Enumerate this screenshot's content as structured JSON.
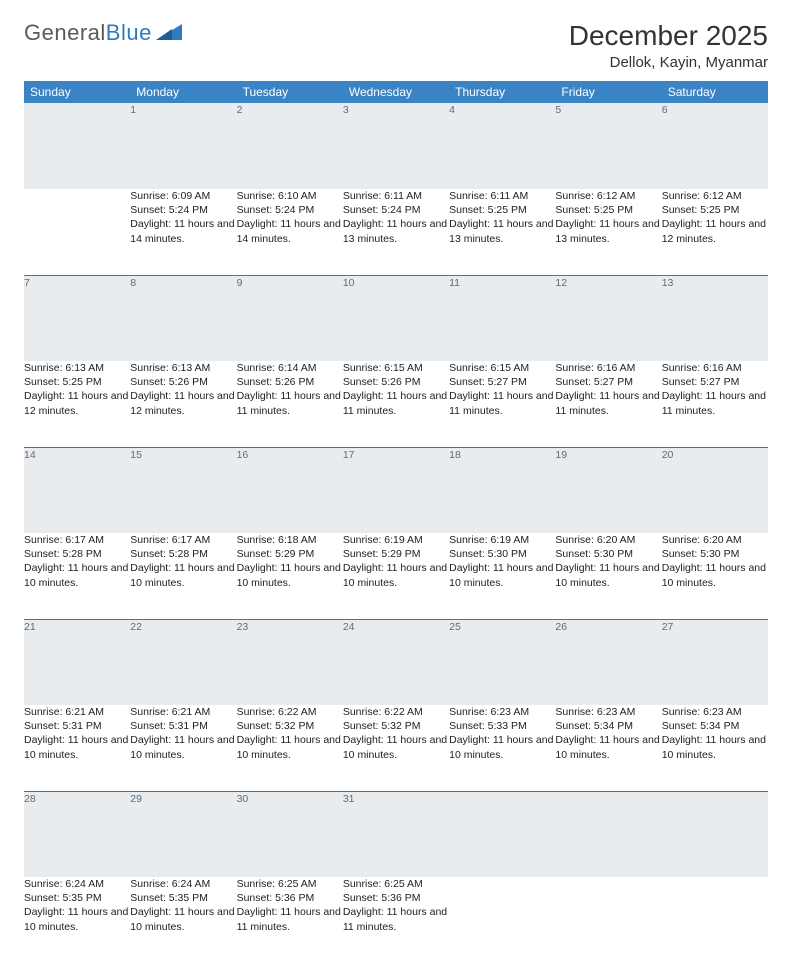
{
  "logo": {
    "text1": "General",
    "text2": "Blue"
  },
  "title": "December 2025",
  "location": "Dellok, Kayin, Myanmar",
  "colors": {
    "header_bg": "#3a83c5",
    "daynum_bg": "#e9ecef",
    "daynum_color": "#5f6b76",
    "row_divider": "#2f7bbf",
    "logo_gray": "#5a5a5a",
    "logo_blue": "#2f7bbf",
    "text": "#222222",
    "bg": "#ffffff"
  },
  "fonts": {
    "title_size": 28,
    "location_size": 15,
    "weekday_size": 12,
    "daynum_size": 12,
    "cell_size": 10.5
  },
  "weekdays": [
    "Sunday",
    "Monday",
    "Tuesday",
    "Wednesday",
    "Thursday",
    "Friday",
    "Saturday"
  ],
  "weeks": [
    {
      "nums": [
        "",
        "1",
        "2",
        "3",
        "4",
        "5",
        "6"
      ],
      "cells": [
        {
          "sr": "",
          "ss": "",
          "dl": ""
        },
        {
          "sr": "Sunrise: 6:09 AM",
          "ss": "Sunset: 5:24 PM",
          "dl": "Daylight: 11 hours and 14 minutes."
        },
        {
          "sr": "Sunrise: 6:10 AM",
          "ss": "Sunset: 5:24 PM",
          "dl": "Daylight: 11 hours and 14 minutes."
        },
        {
          "sr": "Sunrise: 6:11 AM",
          "ss": "Sunset: 5:24 PM",
          "dl": "Daylight: 11 hours and 13 minutes."
        },
        {
          "sr": "Sunrise: 6:11 AM",
          "ss": "Sunset: 5:25 PM",
          "dl": "Daylight: 11 hours and 13 minutes."
        },
        {
          "sr": "Sunrise: 6:12 AM",
          "ss": "Sunset: 5:25 PM",
          "dl": "Daylight: 11 hours and 13 minutes."
        },
        {
          "sr": "Sunrise: 6:12 AM",
          "ss": "Sunset: 5:25 PM",
          "dl": "Daylight: 11 hours and 12 minutes."
        }
      ]
    },
    {
      "nums": [
        "7",
        "8",
        "9",
        "10",
        "11",
        "12",
        "13"
      ],
      "cells": [
        {
          "sr": "Sunrise: 6:13 AM",
          "ss": "Sunset: 5:25 PM",
          "dl": "Daylight: 11 hours and 12 minutes."
        },
        {
          "sr": "Sunrise: 6:13 AM",
          "ss": "Sunset: 5:26 PM",
          "dl": "Daylight: 11 hours and 12 minutes."
        },
        {
          "sr": "Sunrise: 6:14 AM",
          "ss": "Sunset: 5:26 PM",
          "dl": "Daylight: 11 hours and 11 minutes."
        },
        {
          "sr": "Sunrise: 6:15 AM",
          "ss": "Sunset: 5:26 PM",
          "dl": "Daylight: 11 hours and 11 minutes."
        },
        {
          "sr": "Sunrise: 6:15 AM",
          "ss": "Sunset: 5:27 PM",
          "dl": "Daylight: 11 hours and 11 minutes."
        },
        {
          "sr": "Sunrise: 6:16 AM",
          "ss": "Sunset: 5:27 PM",
          "dl": "Daylight: 11 hours and 11 minutes."
        },
        {
          "sr": "Sunrise: 6:16 AM",
          "ss": "Sunset: 5:27 PM",
          "dl": "Daylight: 11 hours and 11 minutes."
        }
      ]
    },
    {
      "nums": [
        "14",
        "15",
        "16",
        "17",
        "18",
        "19",
        "20"
      ],
      "cells": [
        {
          "sr": "Sunrise: 6:17 AM",
          "ss": "Sunset: 5:28 PM",
          "dl": "Daylight: 11 hours and 10 minutes."
        },
        {
          "sr": "Sunrise: 6:17 AM",
          "ss": "Sunset: 5:28 PM",
          "dl": "Daylight: 11 hours and 10 minutes."
        },
        {
          "sr": "Sunrise: 6:18 AM",
          "ss": "Sunset: 5:29 PM",
          "dl": "Daylight: 11 hours and 10 minutes."
        },
        {
          "sr": "Sunrise: 6:19 AM",
          "ss": "Sunset: 5:29 PM",
          "dl": "Daylight: 11 hours and 10 minutes."
        },
        {
          "sr": "Sunrise: 6:19 AM",
          "ss": "Sunset: 5:30 PM",
          "dl": "Daylight: 11 hours and 10 minutes."
        },
        {
          "sr": "Sunrise: 6:20 AM",
          "ss": "Sunset: 5:30 PM",
          "dl": "Daylight: 11 hours and 10 minutes."
        },
        {
          "sr": "Sunrise: 6:20 AM",
          "ss": "Sunset: 5:30 PM",
          "dl": "Daylight: 11 hours and 10 minutes."
        }
      ]
    },
    {
      "nums": [
        "21",
        "22",
        "23",
        "24",
        "25",
        "26",
        "27"
      ],
      "cells": [
        {
          "sr": "Sunrise: 6:21 AM",
          "ss": "Sunset: 5:31 PM",
          "dl": "Daylight: 11 hours and 10 minutes."
        },
        {
          "sr": "Sunrise: 6:21 AM",
          "ss": "Sunset: 5:31 PM",
          "dl": "Daylight: 11 hours and 10 minutes."
        },
        {
          "sr": "Sunrise: 6:22 AM",
          "ss": "Sunset: 5:32 PM",
          "dl": "Daylight: 11 hours and 10 minutes."
        },
        {
          "sr": "Sunrise: 6:22 AM",
          "ss": "Sunset: 5:32 PM",
          "dl": "Daylight: 11 hours and 10 minutes."
        },
        {
          "sr": "Sunrise: 6:23 AM",
          "ss": "Sunset: 5:33 PM",
          "dl": "Daylight: 11 hours and 10 minutes."
        },
        {
          "sr": "Sunrise: 6:23 AM",
          "ss": "Sunset: 5:34 PM",
          "dl": "Daylight: 11 hours and 10 minutes."
        },
        {
          "sr": "Sunrise: 6:23 AM",
          "ss": "Sunset: 5:34 PM",
          "dl": "Daylight: 11 hours and 10 minutes."
        }
      ]
    },
    {
      "nums": [
        "28",
        "29",
        "30",
        "31",
        "",
        "",
        ""
      ],
      "cells": [
        {
          "sr": "Sunrise: 6:24 AM",
          "ss": "Sunset: 5:35 PM",
          "dl": "Daylight: 11 hours and 10 minutes."
        },
        {
          "sr": "Sunrise: 6:24 AM",
          "ss": "Sunset: 5:35 PM",
          "dl": "Daylight: 11 hours and 10 minutes."
        },
        {
          "sr": "Sunrise: 6:25 AM",
          "ss": "Sunset: 5:36 PM",
          "dl": "Daylight: 11 hours and 11 minutes."
        },
        {
          "sr": "Sunrise: 6:25 AM",
          "ss": "Sunset: 5:36 PM",
          "dl": "Daylight: 11 hours and 11 minutes."
        },
        {
          "sr": "",
          "ss": "",
          "dl": ""
        },
        {
          "sr": "",
          "ss": "",
          "dl": ""
        },
        {
          "sr": "",
          "ss": "",
          "dl": ""
        }
      ]
    }
  ]
}
